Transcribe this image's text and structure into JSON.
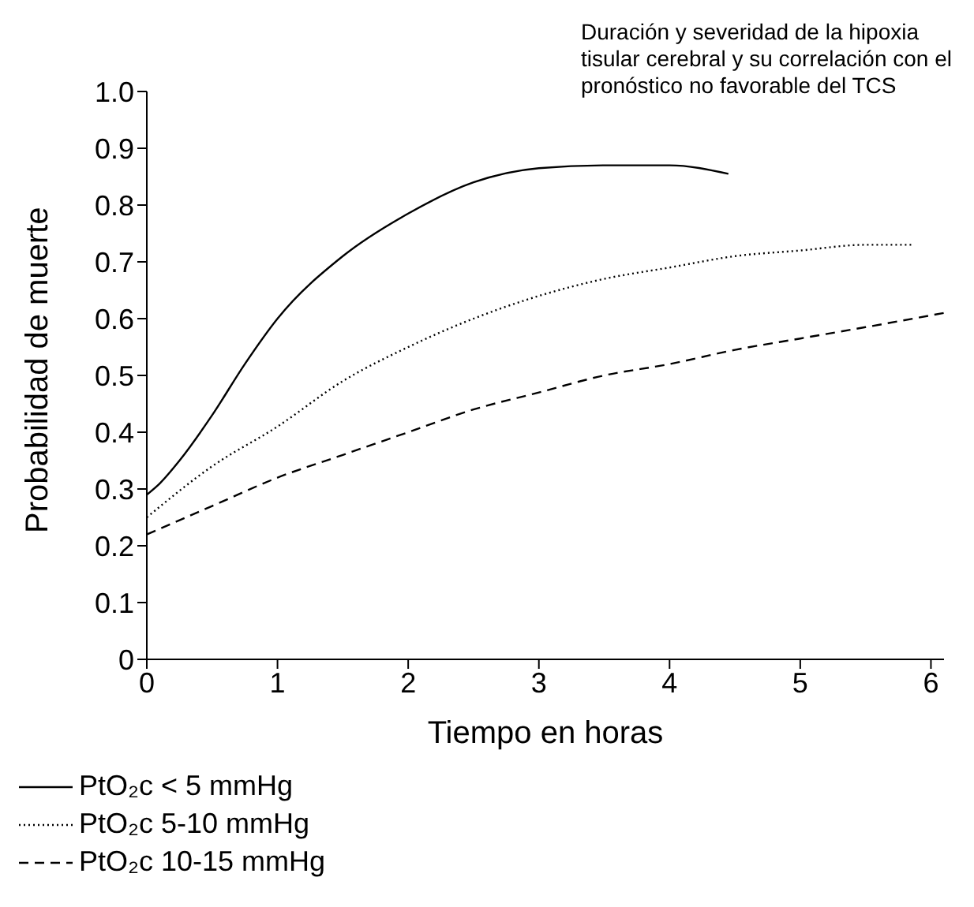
{
  "chart_data": {
    "type": "line",
    "xlabel": "Tiempo en horas",
    "ylabel": "Probabilidad de muerte",
    "annotations": [
      "Duración y severidad de la hipoxia tisular cerebral y su correlación con el pronóstico no favorable del TCS"
    ],
    "xlim": [
      0,
      6.1
    ],
    "xticks": [
      0,
      1,
      2,
      3,
      4,
      5,
      6
    ],
    "ylim": [
      0,
      1.0
    ],
    "yticks": [
      0,
      0.1,
      0.2,
      0.3,
      0.4,
      0.5,
      0.6,
      0.7,
      0.8,
      0.9,
      {
        "value": 1,
        "label": "1.0"
      }
    ],
    "legend": "bottom",
    "marker": "none",
    "series": [
      {
        "name": "PtO₂c < 5 mmHg",
        "color": "#000000",
        "line_style": "solid",
        "x": [
          0,
          0.1,
          0.25,
          0.5,
          0.75,
          1,
          1.5,
          2,
          2.5,
          3,
          3.5,
          4,
          4.45
        ],
        "values": [
          0.29,
          0.31,
          0.35,
          0.43,
          0.52,
          0.6,
          0.71,
          0.785,
          0.84,
          0.865,
          0.87,
          0.87,
          0.855
        ]
      },
      {
        "name": "PtO₂c 5-10 mmHg",
        "color": "#000000",
        "line_style": "dotted",
        "x": [
          0,
          0.5,
          1,
          1.5,
          2,
          2.5,
          3,
          3.5,
          4,
          4.5,
          5,
          5.5,
          5.85
        ],
        "values": [
          0.25,
          0.34,
          0.41,
          0.49,
          0.55,
          0.6,
          0.64,
          0.67,
          0.69,
          0.71,
          0.72,
          0.73,
          0.73
        ]
      },
      {
        "name": "PtO₂c 10-15 mmHg",
        "color": "#000000",
        "line_style": "dashed",
        "x": [
          0,
          0.5,
          1,
          1.5,
          2,
          2.5,
          3,
          3.5,
          4,
          4.5,
          5,
          5.5,
          6.1
        ],
        "values": [
          0.22,
          0.27,
          0.32,
          0.36,
          0.4,
          0.44,
          0.47,
          0.5,
          0.52,
          0.545,
          0.565,
          0.585,
          0.61
        ]
      }
    ]
  }
}
